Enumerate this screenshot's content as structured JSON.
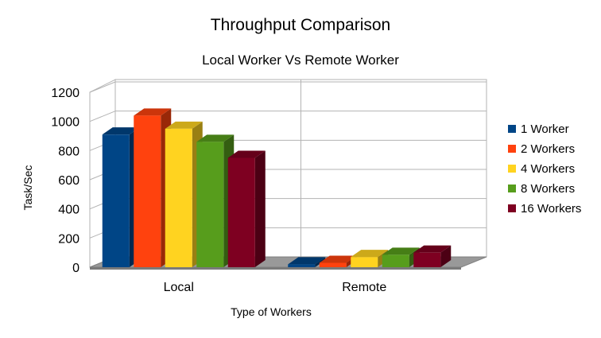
{
  "chart_data": {
    "type": "bar",
    "title": "Throughput Comparison",
    "subtitle": "Local Worker Vs Remote Worker",
    "xlabel": "Type of Workers",
    "ylabel": "Task/Sec",
    "categories": [
      "Local",
      "Remote"
    ],
    "ylim": [
      0,
      1200
    ],
    "yticks": [
      0,
      200,
      400,
      600,
      800,
      1000,
      1200
    ],
    "grid": true,
    "legend_position": "right",
    "series": [
      {
        "name": "1 Worker",
        "color": "#004586",
        "values": [
          910,
          20
        ]
      },
      {
        "name": "2 Workers",
        "color": "#ff420e",
        "values": [
          1040,
          30
        ]
      },
      {
        "name": "4 Workers",
        "color": "#ffd320",
        "values": [
          950,
          70
        ]
      },
      {
        "name": "8 Workers",
        "color": "#579d1c",
        "values": [
          860,
          85
        ]
      },
      {
        "name": "16 Workers",
        "color": "#7e0021",
        "values": [
          750,
          100
        ]
      }
    ]
  }
}
